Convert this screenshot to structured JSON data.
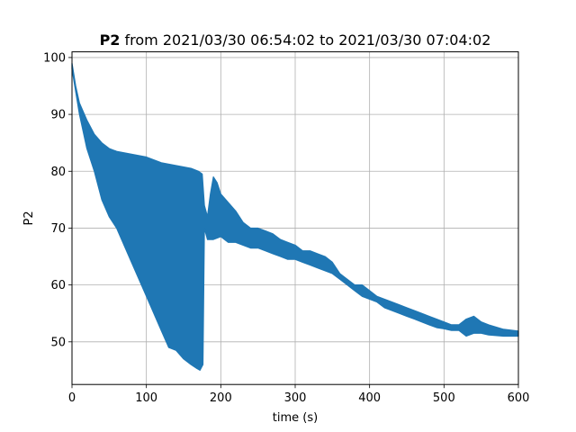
{
  "chart_data": {
    "type": "line",
    "title_bold": "P2",
    "title_rest": "from 2021/03/30 06:54:02 to 2021/03/30 07:04:02",
    "xlabel": "time (s)",
    "ylabel": "P2",
    "xlim": [
      0,
      600
    ],
    "ylim": [
      42.5,
      101
    ],
    "xticks": [
      0,
      100,
      200,
      300,
      400,
      500,
      600
    ],
    "yticks": [
      50,
      60,
      70,
      80,
      90,
      100
    ],
    "grid": true,
    "line_color": "#1f77b4",
    "series": [
      {
        "upper": [
          [
            0,
            99
          ],
          [
            5,
            95
          ],
          [
            10,
            92
          ],
          [
            20,
            89
          ],
          [
            30,
            86.5
          ],
          [
            40,
            85
          ],
          [
            50,
            84
          ],
          [
            60,
            83.5
          ],
          [
            80,
            83
          ],
          [
            100,
            82.5
          ],
          [
            120,
            81.5
          ],
          [
            140,
            81
          ],
          [
            160,
            80.5
          ],
          [
            170,
            80
          ],
          [
            175,
            79.5
          ],
          [
            178,
            74
          ],
          [
            182,
            72
          ],
          [
            186,
            76
          ],
          [
            190,
            79
          ],
          [
            195,
            78
          ],
          [
            200,
            76
          ],
          [
            210,
            74.5
          ],
          [
            220,
            73
          ],
          [
            230,
            71
          ],
          [
            240,
            70
          ],
          [
            250,
            70
          ],
          [
            260,
            69.5
          ],
          [
            270,
            69
          ],
          [
            280,
            68
          ],
          [
            290,
            67.5
          ],
          [
            300,
            67
          ],
          [
            310,
            66
          ],
          [
            320,
            66
          ],
          [
            330,
            65.5
          ],
          [
            340,
            65
          ],
          [
            350,
            64
          ],
          [
            360,
            62
          ],
          [
            370,
            61
          ],
          [
            380,
            60
          ],
          [
            390,
            60
          ],
          [
            400,
            59
          ],
          [
            410,
            58
          ],
          [
            420,
            57.5
          ],
          [
            430,
            57
          ],
          [
            440,
            56.5
          ],
          [
            450,
            56
          ],
          [
            460,
            55.5
          ],
          [
            470,
            55
          ],
          [
            480,
            54.5
          ],
          [
            490,
            54
          ],
          [
            500,
            53.5
          ],
          [
            510,
            53
          ],
          [
            520,
            53
          ],
          [
            530,
            54
          ],
          [
            540,
            54.5
          ],
          [
            550,
            53.5
          ],
          [
            560,
            53
          ],
          [
            580,
            52.2
          ],
          [
            600,
            51.9
          ]
        ],
        "lower": [
          [
            0,
            98
          ],
          [
            5,
            94
          ],
          [
            10,
            90
          ],
          [
            20,
            84
          ],
          [
            30,
            80
          ],
          [
            40,
            75
          ],
          [
            50,
            72
          ],
          [
            60,
            70
          ],
          [
            80,
            64
          ],
          [
            100,
            58
          ],
          [
            120,
            52
          ],
          [
            130,
            49
          ],
          [
            140,
            48.5
          ],
          [
            150,
            47
          ],
          [
            160,
            46
          ],
          [
            168,
            45.3
          ],
          [
            172,
            45
          ],
          [
            176,
            46
          ],
          [
            178,
            70
          ],
          [
            182,
            68
          ],
          [
            190,
            68
          ],
          [
            200,
            68.5
          ],
          [
            210,
            67.5
          ],
          [
            220,
            67.5
          ],
          [
            230,
            67
          ],
          [
            240,
            66.5
          ],
          [
            250,
            66.5
          ],
          [
            260,
            66
          ],
          [
            270,
            65.5
          ],
          [
            280,
            65
          ],
          [
            290,
            64.5
          ],
          [
            300,
            64.5
          ],
          [
            310,
            64
          ],
          [
            320,
            63.5
          ],
          [
            330,
            63
          ],
          [
            340,
            62.5
          ],
          [
            350,
            62
          ],
          [
            360,
            61
          ],
          [
            370,
            60
          ],
          [
            380,
            59
          ],
          [
            390,
            58
          ],
          [
            400,
            57.5
          ],
          [
            410,
            57
          ],
          [
            420,
            56
          ],
          [
            430,
            55.5
          ],
          [
            440,
            55
          ],
          [
            450,
            54.5
          ],
          [
            460,
            54
          ],
          [
            470,
            53.5
          ],
          [
            480,
            53
          ],
          [
            490,
            52.5
          ],
          [
            500,
            52.3
          ],
          [
            510,
            52
          ],
          [
            520,
            52
          ],
          [
            530,
            51
          ],
          [
            540,
            51.5
          ],
          [
            550,
            51.5
          ],
          [
            560,
            51.2
          ],
          [
            580,
            51
          ],
          [
            600,
            51
          ]
        ]
      }
    ]
  }
}
